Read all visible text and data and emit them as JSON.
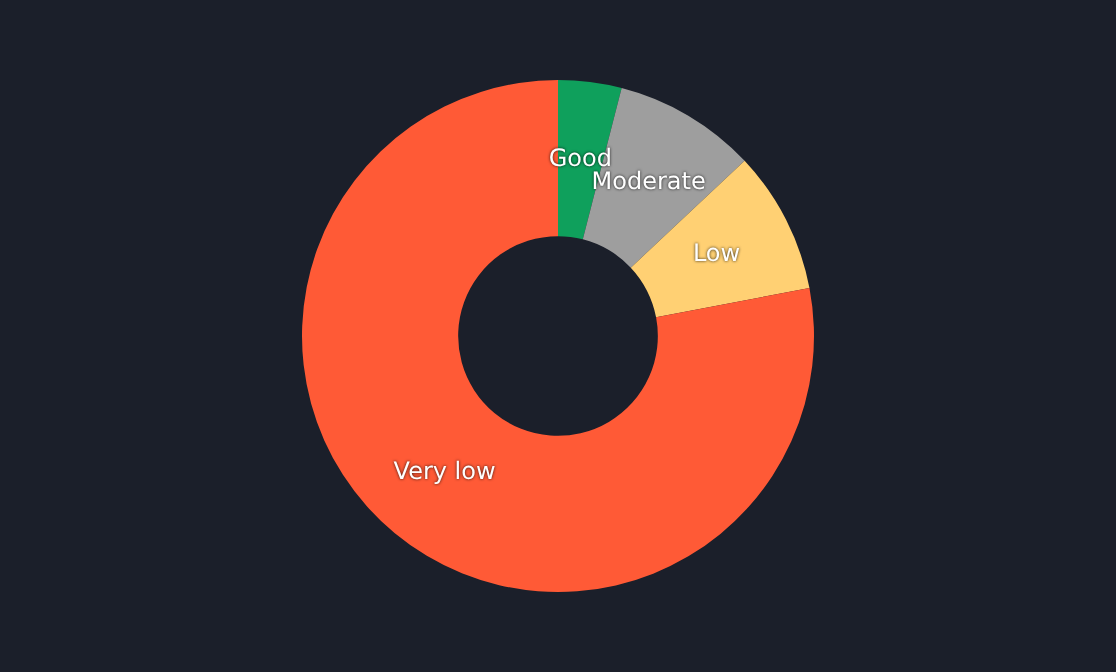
{
  "chart_data": {
    "type": "donut",
    "categories": [
      "Good",
      "Moderate",
      "Low",
      "Very low"
    ],
    "values": [
      4,
      9,
      9,
      78
    ],
    "colors": [
      "#0fa05c",
      "#9e9e9e",
      "#ffd073",
      "#ff5a36"
    ],
    "legend": false
  }
}
